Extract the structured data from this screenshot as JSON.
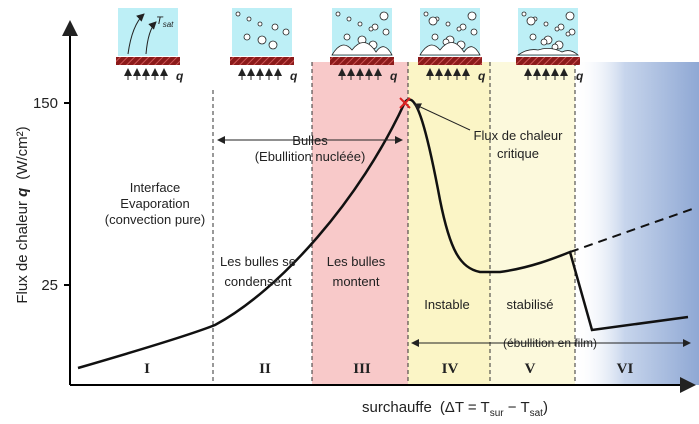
{
  "axes": {
    "y_title": [
      "Flux de chaleur ",
      "q",
      "(W/cm²)"
    ],
    "y_ticks": [
      "150",
      "25"
    ],
    "x_title": [
      "surchauffe",
      "(ΔT = T",
      "sur",
      " − T",
      "sat",
      ")"
    ]
  },
  "icons": {
    "t_sat": [
      "T",
      "sat"
    ],
    "heat": "q"
  },
  "regions": [
    "I",
    "II",
    "III",
    "IV",
    "V",
    "VI"
  ],
  "annotations": {
    "interface": [
      "Interface",
      "Evaporation",
      "(convection pure)"
    ],
    "bulles": [
      "Bulles",
      "(Ebullition nucléée)"
    ],
    "condensent": [
      "Les bulles se",
      "condensent"
    ],
    "montent": [
      "Les bulles",
      "montent"
    ],
    "critique": [
      "Flux de chaleur",
      "critique"
    ],
    "instable": "Instable",
    "stabilise": "stabilisé",
    "film": "(ébullition en film)"
  }
}
